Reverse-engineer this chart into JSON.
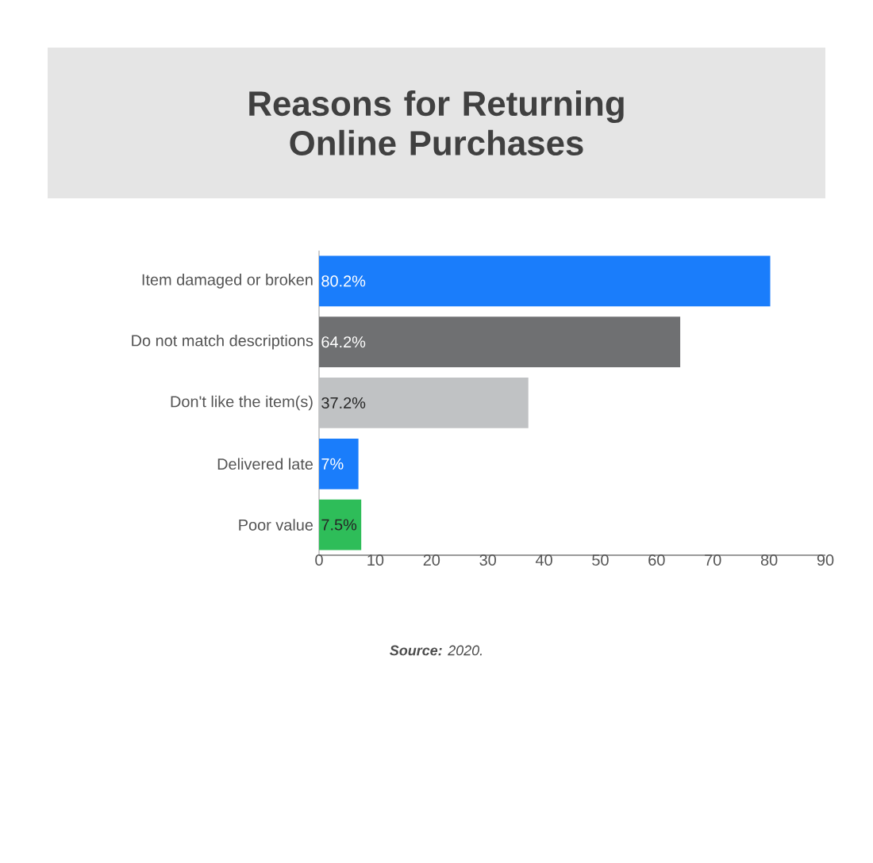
{
  "chart_data": {
    "type": "bar",
    "orientation": "horizontal",
    "title": "Reasons for Returning Online Purchases",
    "categories": [
      "Item damaged or broken",
      "Do not match descriptions",
      "Don't like the item(s)",
      "Delivered late",
      "Poor value"
    ],
    "values": [
      80.2,
      64.2,
      37.2,
      7,
      7.5
    ],
    "colors": [
      "#1a7dfb",
      "#6f7072",
      "#c0c2c4",
      "#1a7dfb",
      "#2ebd59"
    ],
    "value_labels": [
      "80.2%",
      "64.2%",
      "37.2%",
      "7%",
      "7.5%"
    ],
    "xlim": [
      0,
      90
    ],
    "xticks": [
      0,
      10,
      20,
      30,
      40,
      50,
      60,
      70,
      80,
      90
    ],
    "annotations": [
      "**Source:** 2020."
    ]
  }
}
